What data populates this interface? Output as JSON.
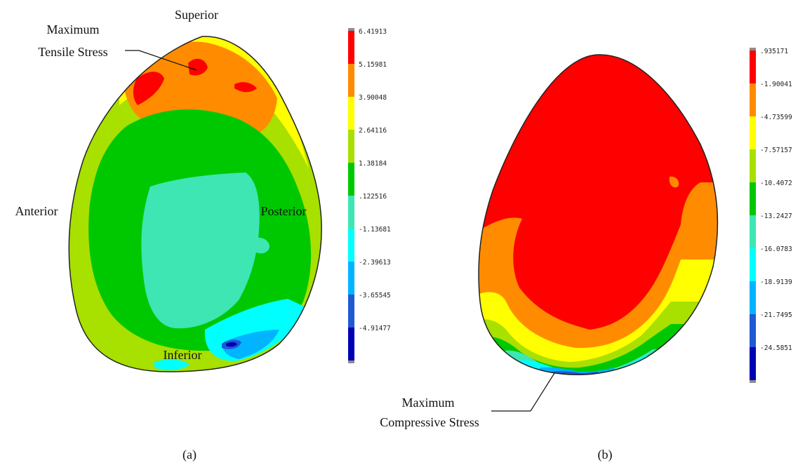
{
  "panel_a": {
    "annotation_max_tensile": [
      "Maximum",
      "Tensile Stress"
    ],
    "orientation": {
      "superior": "Superior",
      "anterior": "Anterior",
      "posterior": "Posterior",
      "inferior": "Inferior"
    },
    "legend_values": [
      "6.41913",
      "5.15981",
      "3.90048",
      "2.64116",
      "1.38184",
      ".122516",
      "-1.13681",
      "-2.39613",
      "-3.65545",
      "-4.91477"
    ],
    "caption": "(a)"
  },
  "panel_b": {
    "annotation_max_compressive": [
      "Maximum",
      "Compressive Stress"
    ],
    "legend_values": [
      ".935171",
      "-1.90041",
      "-4.73599",
      "-7.57157",
      "-10.4072",
      "-13.2427",
      "-16.0783",
      "-18.9139",
      "-21.7495",
      "-24.5851"
    ],
    "caption": "(b)"
  },
  "colors": {
    "scale": [
      "#ff0000",
      "#ff8c00",
      "#ffff00",
      "#a8e000",
      "#00c800",
      "#3ee6b4",
      "#00ffff",
      "#00b4ff",
      "#1e5ad2",
      "#0000b4"
    ],
    "outline": "#222222",
    "legend_end_cap": "#8c8c8c"
  }
}
